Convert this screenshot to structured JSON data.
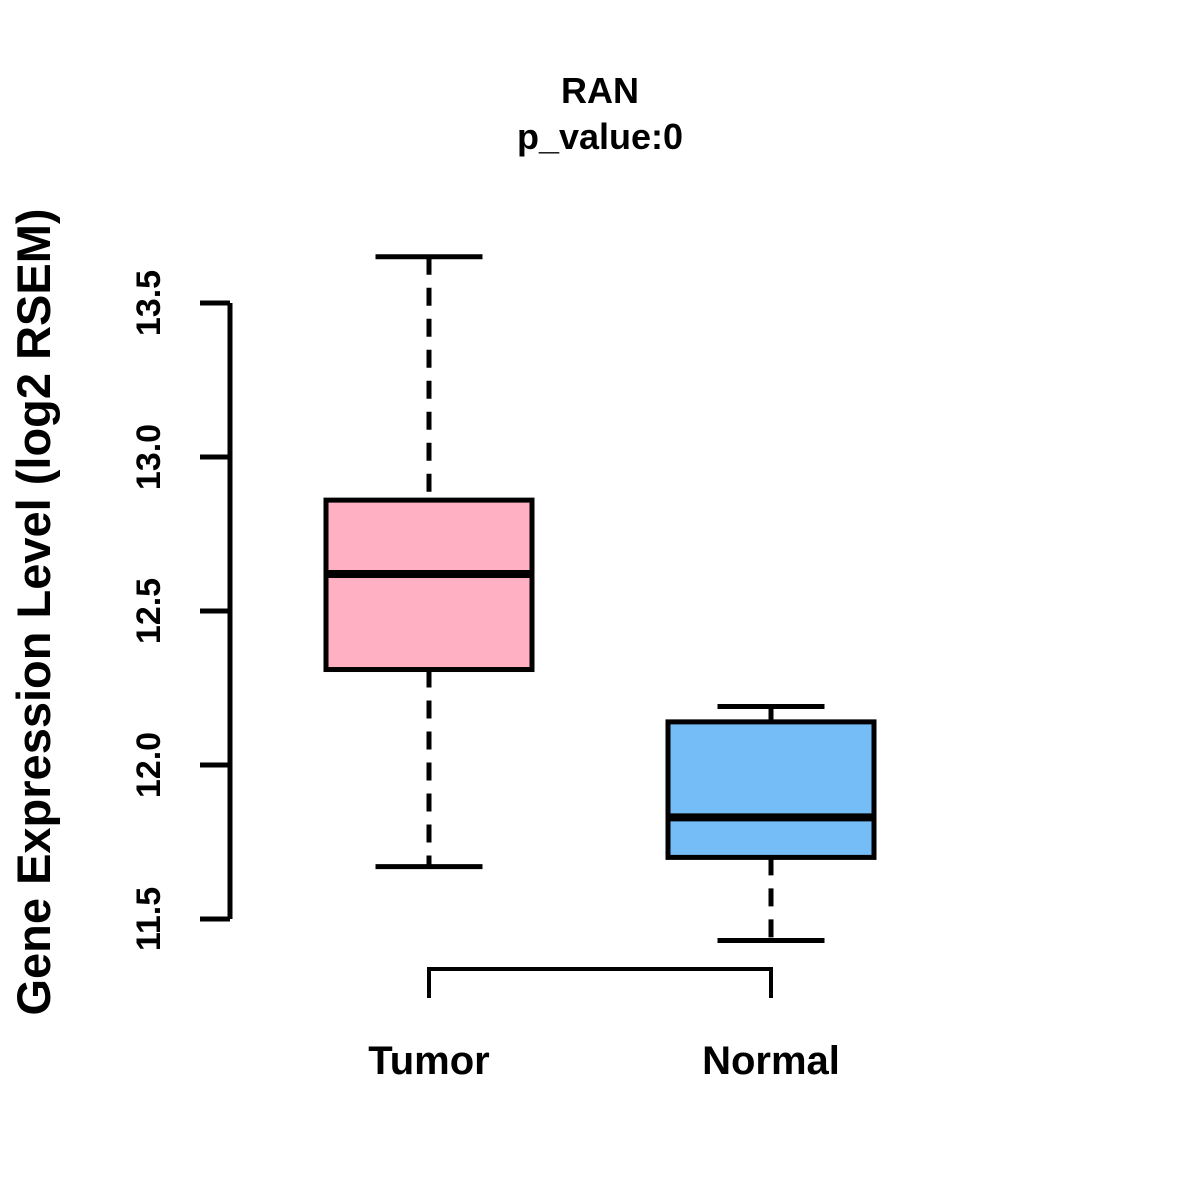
{
  "title": "RAN",
  "subtitle": "p_value:0",
  "y_axis": {
    "label": "Gene Expression Level (log2 RSEM)",
    "tick_labels": [
      "11.5",
      "12.0",
      "12.5",
      "13.0",
      "13.5"
    ]
  },
  "x_axis": {
    "category_labels": [
      "Tumor",
      "Normal"
    ]
  },
  "colors": {
    "background": "#FFFFFF",
    "stroke": "#000000",
    "tumor_fill": "#FFB0C3",
    "normal_fill": "#74BDF6"
  },
  "chart_data": {
    "type": "boxplot",
    "title": "RAN",
    "subtitle": "p_value:0",
    "ylabel": "Gene Expression Level (log2 RSEM)",
    "xlabel": "",
    "ylim": [
      11.35,
      13.72
    ],
    "yticks": [
      11.5,
      12.0,
      12.5,
      13.0,
      13.5
    ],
    "ytick_labels": [
      "11.5",
      "12.0",
      "12.5",
      "13.0",
      "13.5"
    ],
    "grid": false,
    "legend": null,
    "categories": [
      "Tumor",
      "Normal"
    ],
    "series": [
      {
        "name": "Tumor",
        "color": "#FFB0C3",
        "lower_whisker": 11.67,
        "q1": 12.31,
        "median": 12.62,
        "q3": 12.86,
        "upper_whisker": 13.65
      },
      {
        "name": "Normal",
        "color": "#74BDF6",
        "lower_whisker": 11.43,
        "q1": 11.7,
        "median": 11.83,
        "q3": 12.14,
        "upper_whisker": 12.19
      }
    ],
    "comparison_bracket": {
      "between": [
        "Tumor",
        "Normal"
      ]
    }
  }
}
